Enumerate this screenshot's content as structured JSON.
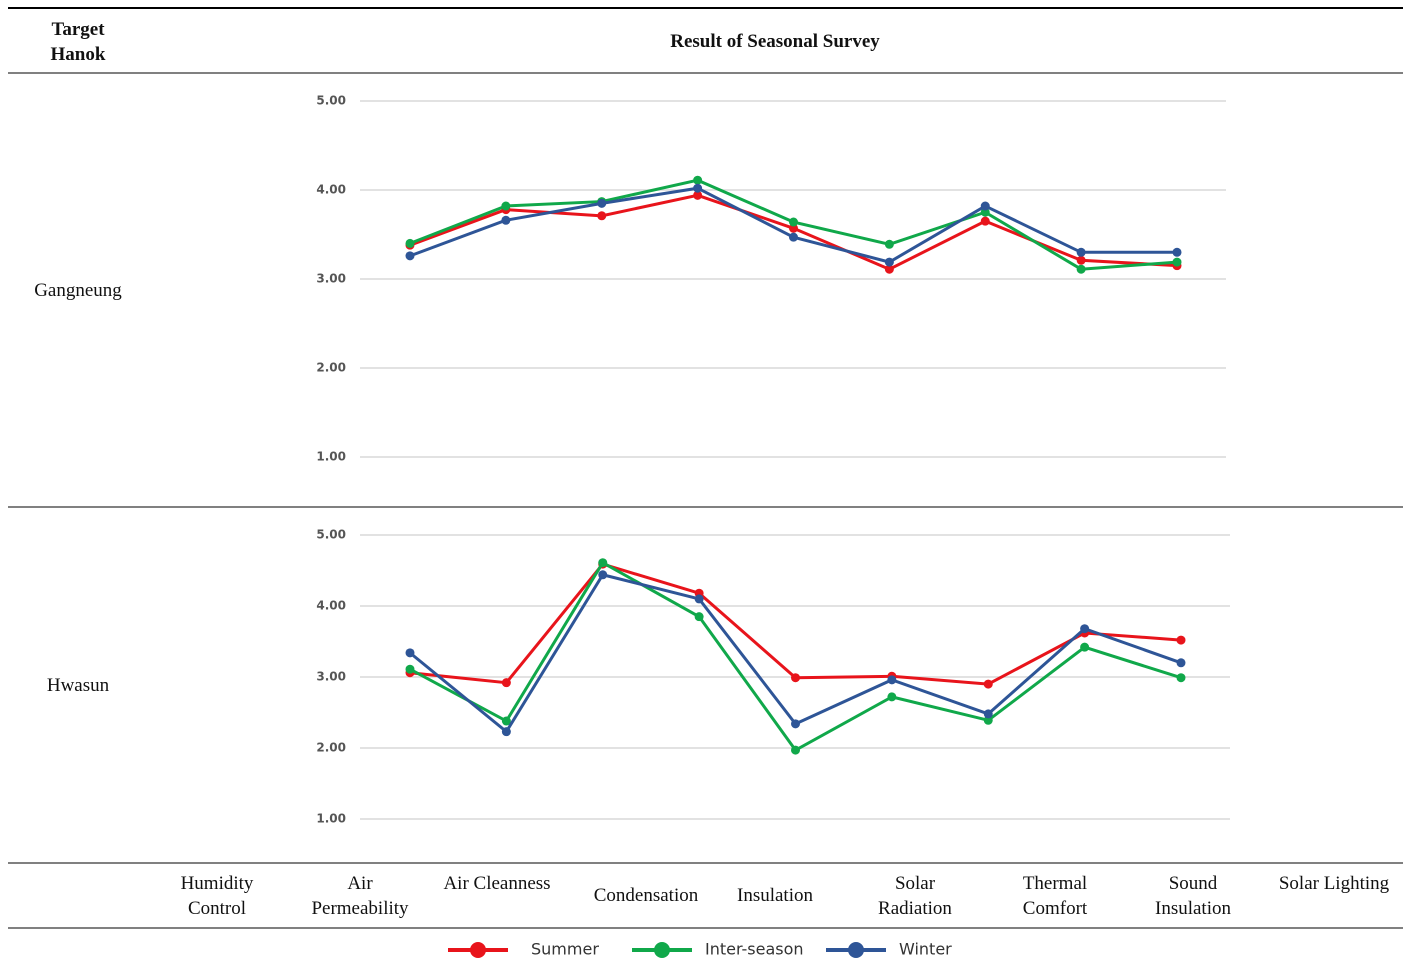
{
  "header": {
    "left": "Target Hanok",
    "right": "Result of Seasonal Survey"
  },
  "legend": [
    {
      "name": "Summer",
      "color": "#e8141b"
    },
    {
      "name": "Inter-season",
      "color": "#10a84a"
    },
    {
      "name": "Winter",
      "color": "#2e5597"
    }
  ],
  "categories": [
    "Humidity Control",
    "Air Permeability",
    "Air Cleanness",
    "Condensation",
    "Insulation",
    "Solar Radiation",
    "Thermal Comfort",
    "Sound Insulation",
    "Solar Lighting"
  ],
  "chart_data": [
    {
      "type": "line",
      "row_label": "Gangneung",
      "ylim": [
        1,
        5
      ],
      "grid": true,
      "yticks": [
        {
          "value": 1,
          "label": "1.00"
        },
        {
          "value": 2,
          "label": "2.00"
        },
        {
          "value": 3,
          "label": "3.00"
        },
        {
          "value": 4,
          "label": "4.00"
        },
        {
          "value": 5,
          "label": "5.00"
        }
      ],
      "series": [
        {
          "values": [
            3.38,
            3.78,
            3.71,
            3.94,
            3.57,
            3.11,
            3.65,
            3.21,
            3.15
          ]
        },
        {
          "values": [
            3.4,
            3.82,
            3.87,
            4.11,
            3.64,
            3.39,
            3.75,
            3.11,
            3.19
          ]
        },
        {
          "values": [
            3.26,
            3.66,
            3.85,
            4.02,
            3.47,
            3.19,
            3.82,
            3.3,
            3.3
          ]
        }
      ]
    },
    {
      "type": "line",
      "row_label": "Hwasun",
      "ylim": [
        1,
        5
      ],
      "grid": true,
      "yticks": [
        {
          "value": 1,
          "label": "1.00"
        },
        {
          "value": 2,
          "label": "2.00"
        },
        {
          "value": 3,
          "label": "3.00"
        },
        {
          "value": 4,
          "label": "4.00"
        },
        {
          "value": 5,
          "label": "5.00"
        }
      ],
      "series": [
        {
          "values": [
            3.06,
            2.92,
            4.59,
            4.18,
            2.99,
            3.01,
            2.9,
            3.62,
            3.52
          ]
        },
        {
          "values": [
            3.11,
            2.38,
            4.61,
            3.85,
            1.97,
            2.72,
            2.39,
            3.42,
            2.99
          ]
        },
        {
          "values": [
            3.34,
            2.23,
            4.44,
            4.1,
            2.34,
            2.96,
            2.48,
            3.68,
            3.2
          ]
        }
      ]
    }
  ]
}
